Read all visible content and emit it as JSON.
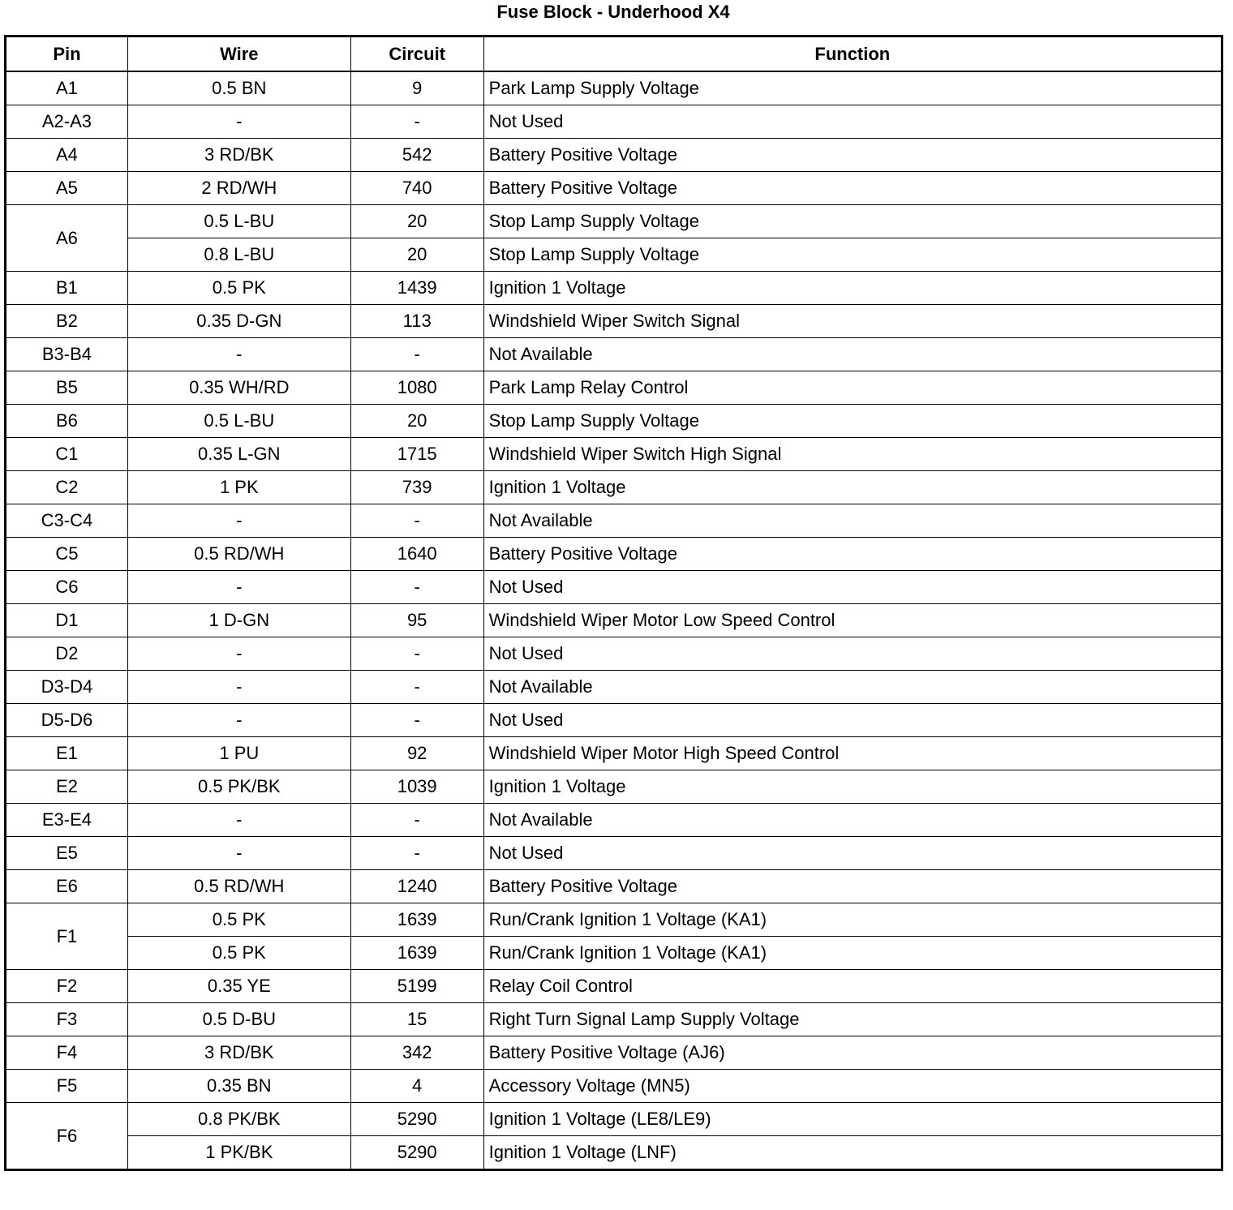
{
  "title": "Fuse Block - Underhood X4",
  "headers": [
    "Pin",
    "Wire",
    "Circuit",
    "Function"
  ],
  "rows": [
    {
      "pin": "A1",
      "wires": [
        [
          "0.5 BN",
          "9",
          "Park Lamp Supply Voltage"
        ]
      ]
    },
    {
      "pin": "A2-A3",
      "wires": [
        [
          "-",
          "-",
          "Not Used"
        ]
      ]
    },
    {
      "pin": "A4",
      "wires": [
        [
          "3 RD/BK",
          "542",
          "Battery Positive Voltage"
        ]
      ]
    },
    {
      "pin": "A5",
      "wires": [
        [
          "2 RD/WH",
          "740",
          "Battery Positive Voltage"
        ]
      ]
    },
    {
      "pin": "A6",
      "wires": [
        [
          "0.5 L-BU",
          "20",
          "Stop Lamp Supply Voltage"
        ],
        [
          "0.8 L-BU",
          "20",
          "Stop Lamp Supply Voltage"
        ]
      ]
    },
    {
      "pin": "B1",
      "wires": [
        [
          "0.5 PK",
          "1439",
          "Ignition 1 Voltage"
        ]
      ]
    },
    {
      "pin": "B2",
      "wires": [
        [
          "0.35 D-GN",
          "113",
          "Windshield Wiper Switch Signal"
        ]
      ]
    },
    {
      "pin": "B3-B4",
      "wires": [
        [
          "-",
          "-",
          "Not Available"
        ]
      ]
    },
    {
      "pin": "B5",
      "wires": [
        [
          "0.35 WH/RD",
          "1080",
          "Park Lamp Relay Control"
        ]
      ]
    },
    {
      "pin": "B6",
      "wires": [
        [
          "0.5 L-BU",
          "20",
          "Stop Lamp Supply Voltage"
        ]
      ]
    },
    {
      "pin": "C1",
      "wires": [
        [
          "0.35 L-GN",
          "1715",
          "Windshield Wiper Switch High Signal"
        ]
      ]
    },
    {
      "pin": "C2",
      "wires": [
        [
          "1 PK",
          "739",
          "Ignition 1 Voltage"
        ]
      ]
    },
    {
      "pin": "C3-C4",
      "wires": [
        [
          "-",
          "-",
          "Not Available"
        ]
      ]
    },
    {
      "pin": "C5",
      "wires": [
        [
          "0.5 RD/WH",
          "1640",
          "Battery Positive Voltage"
        ]
      ]
    },
    {
      "pin": "C6",
      "wires": [
        [
          "-",
          "-",
          "Not Used"
        ]
      ]
    },
    {
      "pin": "D1",
      "wires": [
        [
          "1 D-GN",
          "95",
          "Windshield Wiper Motor Low Speed Control"
        ]
      ]
    },
    {
      "pin": "D2",
      "wires": [
        [
          "-",
          "-",
          "Not Used"
        ]
      ]
    },
    {
      "pin": "D3-D4",
      "wires": [
        [
          "-",
          "-",
          "Not Available"
        ]
      ]
    },
    {
      "pin": "D5-D6",
      "wires": [
        [
          "-",
          "-",
          "Not Used"
        ]
      ]
    },
    {
      "pin": "E1",
      "wires": [
        [
          "1 PU",
          "92",
          "Windshield Wiper Motor High Speed Control"
        ]
      ]
    },
    {
      "pin": "E2",
      "wires": [
        [
          "0.5 PK/BK",
          "1039",
          "Ignition 1 Voltage"
        ]
      ]
    },
    {
      "pin": "E3-E4",
      "wires": [
        [
          "-",
          "-",
          "Not Available"
        ]
      ]
    },
    {
      "pin": "E5",
      "wires": [
        [
          "-",
          "-",
          "Not Used"
        ]
      ]
    },
    {
      "pin": "E6",
      "wires": [
        [
          "0.5 RD/WH",
          "1240",
          "Battery Positive Voltage"
        ]
      ]
    },
    {
      "pin": "F1",
      "wires": [
        [
          "0.5 PK",
          "1639",
          "Run/Crank Ignition 1 Voltage (KA1)"
        ],
        [
          "0.5 PK",
          "1639",
          "Run/Crank Ignition 1 Voltage (KA1)"
        ]
      ]
    },
    {
      "pin": "F2",
      "wires": [
        [
          "0.35 YE",
          "5199",
          "Relay Coil Control"
        ]
      ]
    },
    {
      "pin": "F3",
      "wires": [
        [
          "0.5 D-BU",
          "15",
          "Right Turn Signal Lamp Supply Voltage"
        ]
      ]
    },
    {
      "pin": "F4",
      "wires": [
        [
          "3 RD/BK",
          "342",
          "Battery Positive Voltage (AJ6)"
        ]
      ]
    },
    {
      "pin": "F5",
      "wires": [
        [
          "0.35 BN",
          "4",
          "Accessory Voltage (MN5)"
        ]
      ]
    },
    {
      "pin": "F6",
      "wires": [
        [
          "0.8 PK/BK",
          "5290",
          "Ignition 1 Voltage (LE8/LE9)"
        ],
        [
          "1 PK/BK",
          "5290",
          "Ignition 1 Voltage (LNF)"
        ]
      ]
    }
  ]
}
